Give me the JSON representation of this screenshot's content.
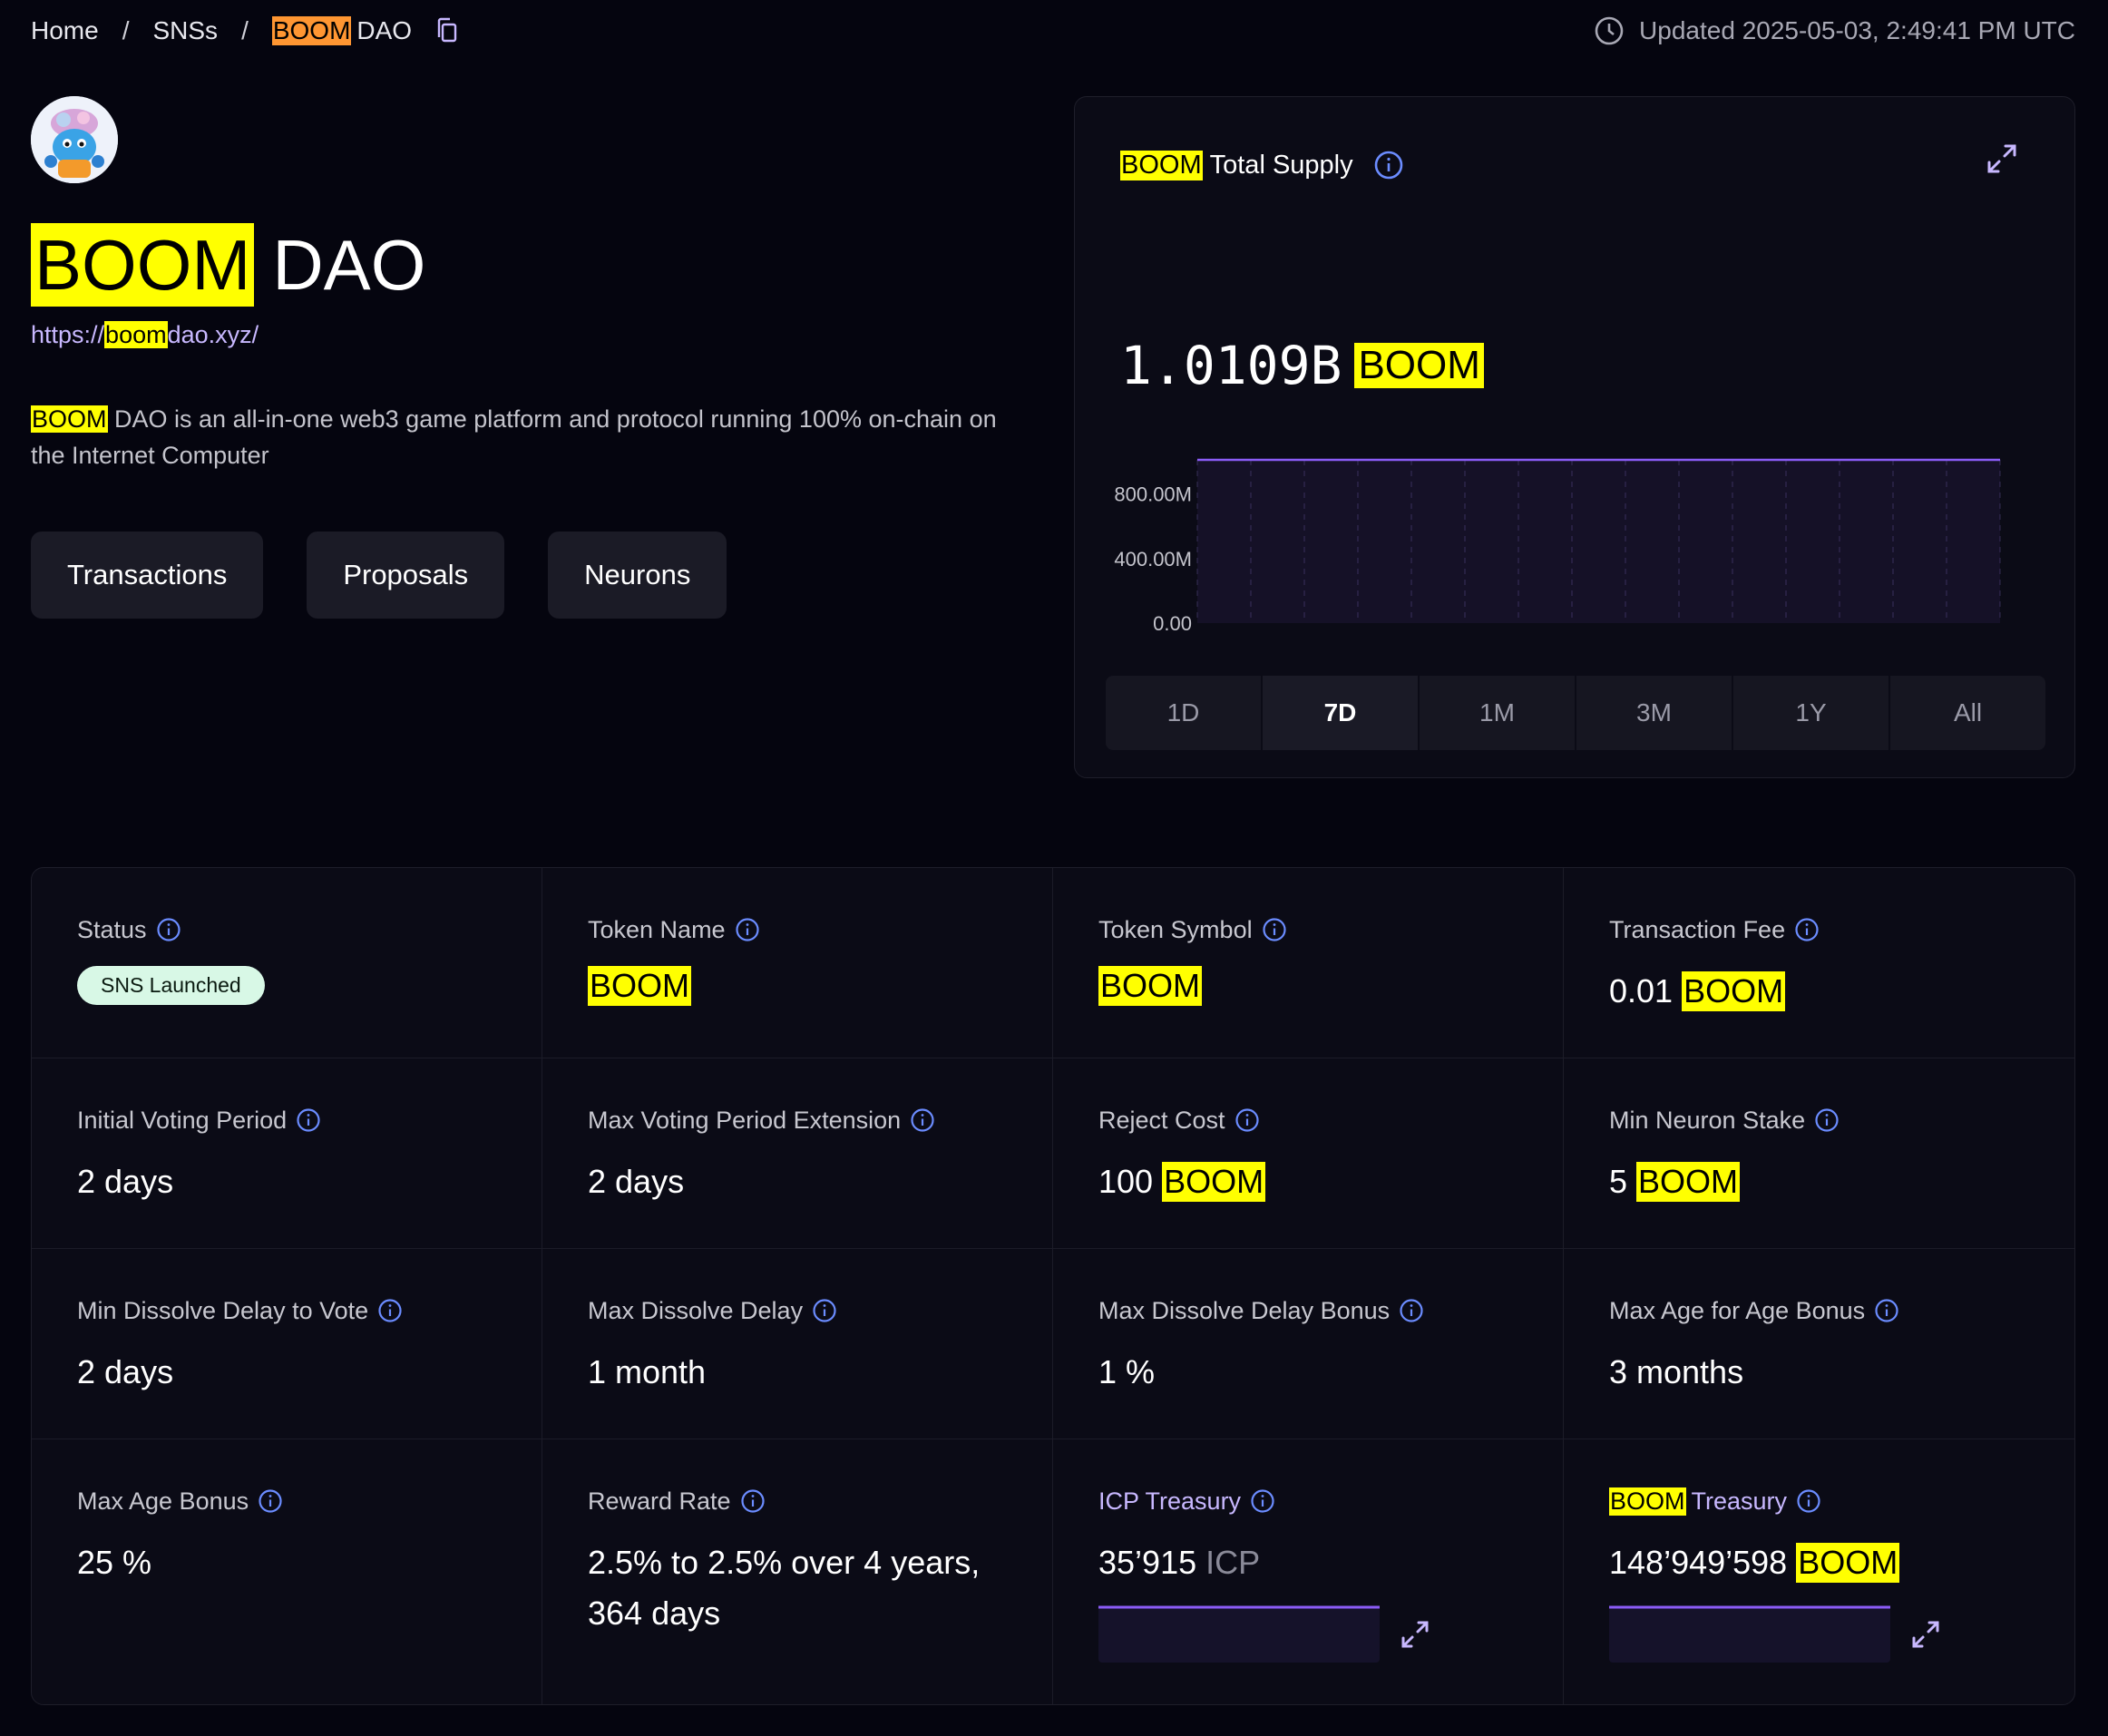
{
  "breadcrumb": {
    "home": "Home",
    "snss": "SNSs",
    "current_highlight": "BOOM",
    "current_rest": "DAO"
  },
  "updated": "Updated 2025-05-03, 2:49:41 PM UTC",
  "header": {
    "title_highlight": "BOOM",
    "title_rest": "DAO",
    "link_prefix": "https://",
    "link_highlight": "boom",
    "link_suffix": "dao.xyz/",
    "description_highlight": "BOOM",
    "description_rest": "DAO is an all-in-one web3 game platform and protocol running 100% on-chain on the Internet Computer"
  },
  "nav": {
    "transactions": "Transactions",
    "proposals": "Proposals",
    "neurons": "Neurons"
  },
  "supply_card": {
    "title_highlight": "BOOM",
    "title_rest": "Total Supply",
    "value": "1.0109B",
    "unit": "BOOM",
    "ranges": [
      "1D",
      "7D",
      "1M",
      "3M",
      "1Y",
      "All"
    ],
    "active_range": "7D"
  },
  "chart_data": {
    "type": "area",
    "y_ticks": [
      "0.00",
      "400.00M",
      "800.00M"
    ],
    "ylim": [
      0,
      1010900000
    ],
    "x": [
      0,
      1,
      2,
      3,
      4,
      5,
      6,
      7
    ],
    "values": [
      1010900000,
      1010900000,
      1010900000,
      1010900000,
      1010900000,
      1010900000,
      1010900000,
      1010900000
    ],
    "line_color": "#8b5cf6"
  },
  "stats": {
    "status": {
      "label": "Status",
      "badge": "SNS Launched"
    },
    "token_name": {
      "label": "Token Name",
      "value": "BOOM"
    },
    "token_symbol": {
      "label": "Token Symbol",
      "value": "BOOM"
    },
    "transaction_fee": {
      "label": "Transaction Fee",
      "amount": "0.01",
      "unit": "BOOM"
    },
    "initial_voting": {
      "label": "Initial Voting Period",
      "value": "2 days"
    },
    "max_voting_ext": {
      "label": "Max Voting Period Extension",
      "value": "2 days"
    },
    "reject_cost": {
      "label": "Reject Cost",
      "amount": "100",
      "unit": "BOOM"
    },
    "min_neuron_stake": {
      "label": "Min Neuron Stake",
      "amount": "5",
      "unit": "BOOM"
    },
    "min_dissolve": {
      "label": "Min Dissolve Delay to Vote",
      "value": "2 days"
    },
    "max_dissolve": {
      "label": "Max Dissolve Delay",
      "value": "1 month"
    },
    "max_dissolve_bonus": {
      "label": "Max Dissolve Delay Bonus",
      "value": "1 %"
    },
    "max_age_for_bonus": {
      "label": "Max Age for Age Bonus",
      "value": "3 months"
    },
    "max_age_bonus": {
      "label": "Max Age Bonus",
      "value": "25 %"
    },
    "reward_rate": {
      "label": "Reward Rate",
      "value": "2.5% to 2.5% over 4 years, 364 days"
    },
    "icp_treasury": {
      "label": "ICP Treasury",
      "amount": "35’915",
      "unit": "ICP"
    },
    "boom_treasury": {
      "label_highlight": "BOOM",
      "label_rest": "Treasury",
      "amount": "148’949’598",
      "unit": "BOOM"
    }
  },
  "colors": {
    "background": "#05050f",
    "card": "#0b0b16",
    "highlight": "#ffff00",
    "accent_purple": "#8b5cf6",
    "info_blue": "#6b8cff"
  },
  "icons": [
    "copy-icon",
    "clock-icon",
    "info-icon",
    "expand-icon"
  ]
}
